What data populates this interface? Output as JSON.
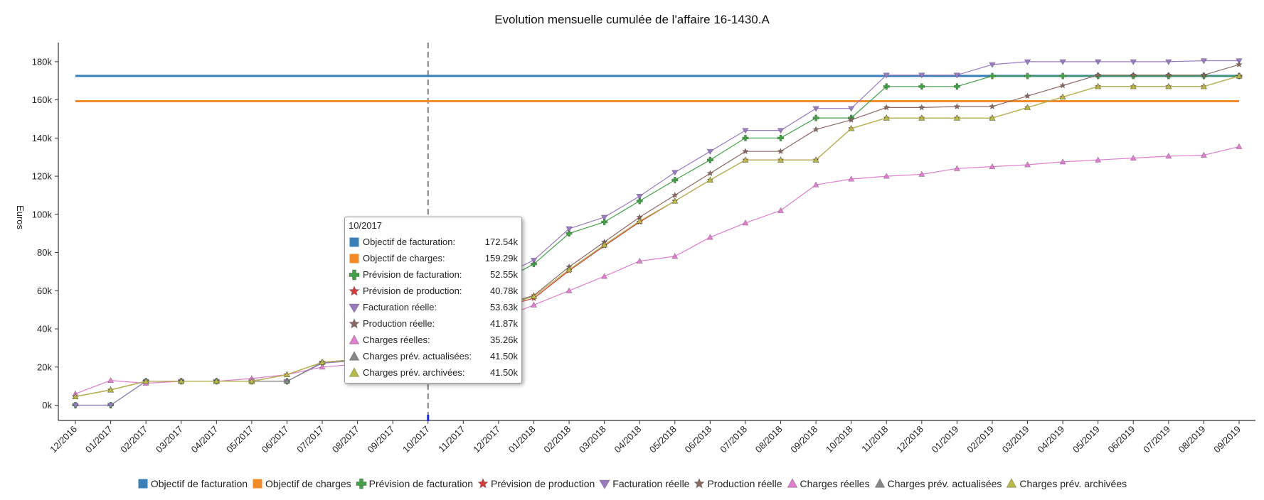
{
  "chart_data": {
    "type": "line",
    "title": "Evolution mensuelle cumulée de l'affaire 16-1430.A",
    "ylabel": "Euros",
    "xlabel": "",
    "ylim": [
      -8000,
      190000
    ],
    "y_ticks": [
      0,
      20000,
      40000,
      60000,
      80000,
      100000,
      120000,
      140000,
      160000,
      180000
    ],
    "y_tick_labels": [
      "0k",
      "20k",
      "40k",
      "60k",
      "80k",
      "100k",
      "120k",
      "140k",
      "160k",
      "180k"
    ],
    "categories": [
      "12/2016",
      "01/2017",
      "02/2017",
      "03/2017",
      "04/2017",
      "05/2017",
      "06/2017",
      "07/2017",
      "08/2017",
      "09/2017",
      "10/2017",
      "11/2017",
      "12/2017",
      "01/2018",
      "02/2018",
      "03/2018",
      "04/2018",
      "05/2018",
      "06/2018",
      "07/2018",
      "08/2018",
      "09/2018",
      "10/2018",
      "11/2018",
      "12/2018",
      "01/2019",
      "02/2019",
      "03/2019",
      "04/2019",
      "05/2019",
      "06/2019",
      "07/2019",
      "08/2019",
      "09/2019"
    ],
    "highlight_category": "10/2017",
    "legend_position": "bottom",
    "series": [
      {
        "name": "Objectif de facturation",
        "color": "#3a7fb7",
        "marker": "none",
        "shape": "square",
        "values": [
          172540,
          172540,
          172540,
          172540,
          172540,
          172540,
          172540,
          172540,
          172540,
          172540,
          172540,
          172540,
          172540,
          172540,
          172540,
          172540,
          172540,
          172540,
          172540,
          172540,
          172540,
          172540,
          172540,
          172540,
          172540,
          172540,
          172540,
          172540,
          172540,
          172540,
          172540,
          172540,
          172540,
          172540
        ]
      },
      {
        "name": "Objectif de charges",
        "color": "#f28a2a",
        "marker": "none",
        "shape": "square",
        "values": [
          159290,
          159290,
          159290,
          159290,
          159290,
          159290,
          159290,
          159290,
          159290,
          159290,
          159290,
          159290,
          159290,
          159290,
          159290,
          159290,
          159290,
          159290,
          159290,
          159290,
          159290,
          159290,
          159290,
          159290,
          159290,
          159290,
          159290,
          159290,
          159290,
          159290,
          159290,
          159290,
          159290,
          159290
        ]
      },
      {
        "name": "Prévision de facturation",
        "color": "#43a047",
        "marker": "cross",
        "shape": "cross",
        "values": [
          0,
          0,
          12500,
          12500,
          12500,
          12500,
          12500,
          22000,
          23500,
          25000,
          52550,
          58000,
          64000,
          74000,
          90000,
          96000,
          107000,
          118000,
          128500,
          140000,
          140000,
          150500,
          150500,
          167000,
          167000,
          167000,
          172500,
          172500,
          172500,
          172500,
          172500,
          172500,
          172500,
          172500
        ]
      },
      {
        "name": "Prévision de production",
        "color": "#d63c3c",
        "marker": "star",
        "shape": "star",
        "values": [
          4500,
          8000,
          12500,
          12500,
          12500,
          12500,
          16000,
          22500,
          24000,
          25500,
          40780,
          46000,
          51000,
          56000,
          70500,
          83500,
          96000,
          107000,
          118000,
          128500,
          128500,
          128500,
          145000,
          150500,
          150500,
          150500,
          150500,
          156000,
          161500,
          167000,
          167000,
          167000,
          167000,
          172500
        ]
      },
      {
        "name": "Facturation réelle",
        "color": "#9b7ac4",
        "marker": "tri-down",
        "shape": "tri-down",
        "values": [
          0,
          0,
          12500,
          12500,
          12500,
          12500,
          12500,
          22000,
          23500,
          25000,
          53630,
          60000,
          67000,
          76000,
          92500,
          98500,
          109500,
          122000,
          133000,
          144000,
          144000,
          155500,
          155500,
          173000,
          173000,
          173000,
          178500,
          180000,
          180000,
          180000,
          180000,
          180000,
          180500,
          180500
        ]
      },
      {
        "name": "Production réelle",
        "color": "#8c6a62",
        "marker": "star",
        "shape": "star",
        "values": [
          4500,
          8000,
          12500,
          12500,
          12500,
          12500,
          16000,
          22500,
          24000,
          25500,
          41870,
          47000,
          52000,
          57500,
          72500,
          85500,
          98500,
          110000,
          121500,
          133000,
          133000,
          144500,
          149500,
          156000,
          156000,
          156500,
          156500,
          162000,
          167500,
          173000,
          173000,
          173000,
          173000,
          178500
        ]
      },
      {
        "name": "Charges réelles",
        "color": "#e07fcf",
        "marker": "triangle",
        "shape": "triangle",
        "values": [
          6000,
          13000,
          11500,
          12500,
          12500,
          14000,
          16000,
          20000,
          21500,
          23000,
          35260,
          40000,
          45000,
          52500,
          60000,
          67500,
          75500,
          78000,
          88000,
          95500,
          102000,
          115500,
          118500,
          120000,
          121000,
          124000,
          125000,
          126000,
          127500,
          128500,
          129500,
          130500,
          131000,
          135500
        ]
      },
      {
        "name": "Charges prév. actualisées",
        "color": "#888888",
        "marker": "triangle",
        "shape": "triangle",
        "values": [
          4500,
          8000,
          12500,
          12500,
          12500,
          12500,
          12500,
          22500,
          24000,
          25500,
          41500,
          46500,
          51500,
          57000,
          71000,
          84000,
          96500,
          107000,
          118000,
          128500,
          128500,
          128500,
          145000,
          150500,
          150500,
          150500,
          150500,
          156000,
          161500,
          167000,
          167000,
          167000,
          167000,
          172500
        ]
      },
      {
        "name": "Charges prév. archivées",
        "color": "#b9b94a",
        "marker": "star",
        "shape": "triangle",
        "values": [
          4500,
          8000,
          12500,
          12500,
          12500,
          12500,
          16000,
          22500,
          24000,
          25500,
          41500,
          46500,
          51500,
          57000,
          71000,
          84000,
          96500,
          107000,
          118000,
          128500,
          128500,
          128500,
          145000,
          150500,
          150500,
          150500,
          150500,
          156000,
          161500,
          167000,
          167000,
          167000,
          167000,
          172500
        ]
      }
    ]
  },
  "tooltip": {
    "title": "10/2017",
    "rows": [
      {
        "label": "Objectif de facturation:",
        "value": "172.54k",
        "color": "#3a7fb7",
        "shape": "square"
      },
      {
        "label": "Objectif de charges:",
        "value": "159.29k",
        "color": "#f28a2a",
        "shape": "square"
      },
      {
        "label": "Prévision de facturation:",
        "value": "52.55k",
        "color": "#43a047",
        "shape": "cross"
      },
      {
        "label": "Prévision de production:",
        "value": "40.78k",
        "color": "#d63c3c",
        "shape": "star"
      },
      {
        "label": "Facturation réelle:",
        "value": "53.63k",
        "color": "#9b7ac4",
        "shape": "tri-down"
      },
      {
        "label": "Production réelle:",
        "value": "41.87k",
        "color": "#8c6a62",
        "shape": "star"
      },
      {
        "label": "Charges réelles:",
        "value": "35.26k",
        "color": "#e07fcf",
        "shape": "triangle"
      },
      {
        "label": "Charges prév. actualisées:",
        "value": "41.50k",
        "color": "#888888",
        "shape": "triangle"
      },
      {
        "label": "Charges prév. archivées:",
        "value": "41.50k",
        "color": "#b9b94a",
        "shape": "triangle"
      }
    ]
  }
}
